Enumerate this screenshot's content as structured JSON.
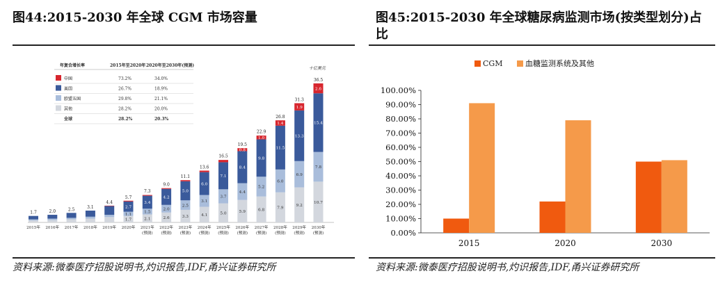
{
  "left_panel": {
    "title": "图44:2015-2030 年全球 CGM 市场容量",
    "source": "资料来源:微泰医疗招股说明书,灼识报告,IDF,甬兴证券研究所"
  },
  "right_panel": {
    "title": "图45:2015-2030 年全球糖尿病监测市场(按类型划分)占比",
    "source": "资料来源:微泰医疗招股说明书,灼识报告,IDF,甬兴证券研究所"
  },
  "chart_data": [
    {
      "type": "bar",
      "stacked": true,
      "unit_label": "十亿美元",
      "categories": [
        "2015年",
        "2016年",
        "2017年",
        "2018年",
        "2019年",
        "2020年",
        "2021年",
        "2022年",
        "2023年",
        "2024年",
        "2025年",
        "2026年",
        "2027年",
        "2028年",
        "2029年",
        "2030年"
      ],
      "category_notes": [
        "",
        "",
        "",
        "",
        "",
        "",
        "(预测)",
        "(预测)",
        "(预测)",
        "(预测)",
        "(预测)",
        "(预测)",
        "(预测)",
        "(预测)",
        "(预测)",
        "(预测)"
      ],
      "totals": [
        1.7,
        2.0,
        2.5,
        3.1,
        4.4,
        5.7,
        7.3,
        9.0,
        11.1,
        13.6,
        16.5,
        19.5,
        22.9,
        26.8,
        31.3,
        36.5
      ],
      "series": [
        {
          "name": "其他",
          "color": "#d3d7de",
          "values": [
            0.5,
            0.6,
            0.8,
            1.0,
            1.4,
            1.7,
            2.1,
            2.6,
            3.3,
            4.1,
            5.0,
            5.9,
            6.8,
            7.9,
            9.2,
            10.7
          ],
          "labels_from": 5
        },
        {
          "name": "欧盟五国",
          "color": "#a9bddb",
          "values": [
            0.3,
            0.4,
            0.4,
            0.5,
            0.6,
            1.1,
            1.5,
            2.0,
            2.5,
            3.1,
            3.7,
            4.4,
            5.2,
            6.0,
            6.9,
            7.8
          ],
          "labels_from": 5
        },
        {
          "name": "美国",
          "color": "#3a5a9b",
          "values": [
            0.9,
            1.0,
            1.3,
            1.6,
            2.3,
            2.7,
            3.4,
            4.2,
            5.0,
            6.0,
            7.1,
            8.4,
            9.8,
            11.5,
            13.3,
            15.4
          ],
          "labels_from": 5
        },
        {
          "name": "中国",
          "color": "#d7262e",
          "values": [
            0.0,
            0.0,
            0.0,
            0.0,
            0.1,
            0.2,
            0.2,
            0.2,
            0.3,
            0.4,
            0.6,
            0.8,
            1.0,
            1.4,
            1.9,
            2.6
          ],
          "labels_from": 6
        }
      ],
      "growth_table": {
        "headers": [
          "年复合增长率",
          "2015年至2020年",
          "2020年至2030年(预测)"
        ],
        "rows": [
          {
            "name": "中国",
            "color": "#d7262e",
            "a": "73.2%",
            "b": "34.0%"
          },
          {
            "name": "美国",
            "color": "#3a5a9b",
            "a": "26.7%",
            "b": "18.9%"
          },
          {
            "name": "欧盟五国",
            "color": "#a9bddb",
            "a": "29.8%",
            "b": "21.1%"
          },
          {
            "name": "其他",
            "color": "#d3d7de",
            "a": "28.2%",
            "b": "20.0%"
          },
          {
            "name": "全球",
            "color": "",
            "a": "28.2%",
            "b": "20.3%"
          }
        ]
      }
    },
    {
      "type": "bar",
      "categories": [
        "2015",
        "2020",
        "2030"
      ],
      "series": [
        {
          "name": "CGM",
          "color": "#f05a0f",
          "values": [
            10,
            22,
            50
          ]
        },
        {
          "name": "血糖监测系统及其他",
          "color": "#f59a4a",
          "values": [
            91,
            79,
            51
          ]
        }
      ],
      "ylim": [
        0,
        100
      ],
      "yticks": [
        "0.00%",
        "10.00%",
        "20.00%",
        "30.00%",
        "40.00%",
        "50.00%",
        "60.00%",
        "70.00%",
        "80.00%",
        "90.00%",
        "100.00%"
      ],
      "legend_position": "top"
    }
  ]
}
